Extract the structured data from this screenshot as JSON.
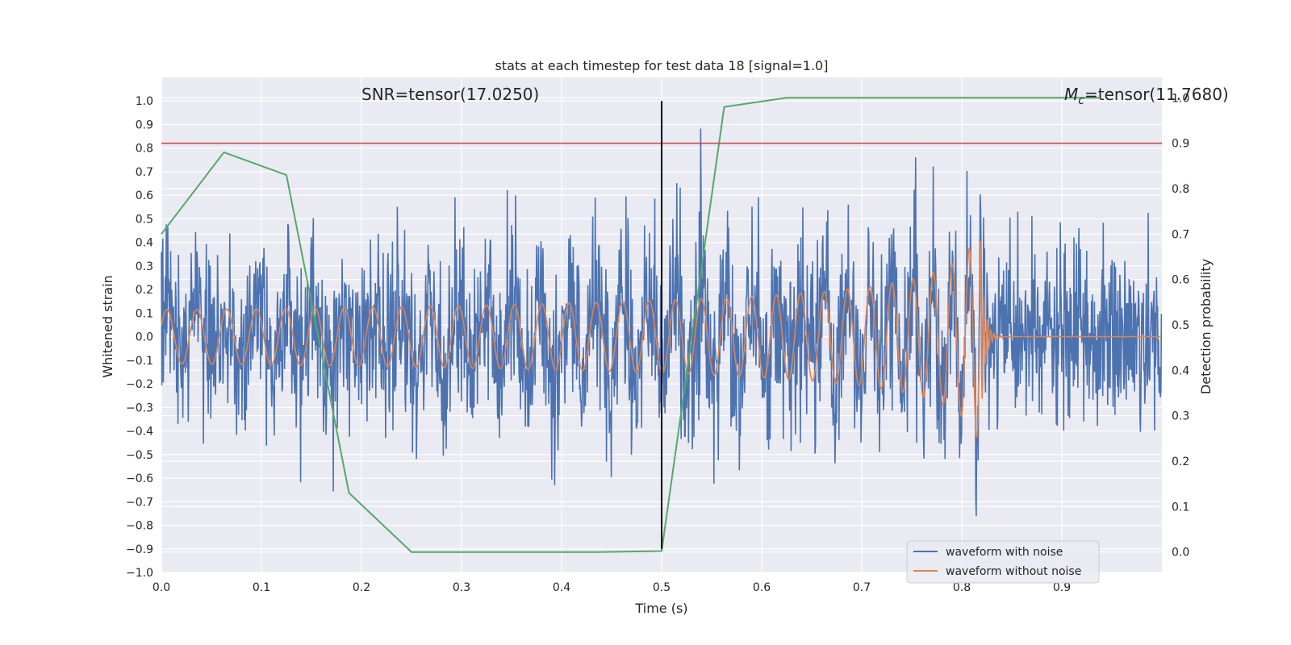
{
  "chart_data": {
    "type": "line",
    "title": "stats at each timestep for test data 18 [signal=1.0]",
    "xlabel": "Time (s)",
    "ylabel": "Whitened strain",
    "y2label": "Detection probability",
    "xlim": [
      0.0,
      1.0
    ],
    "ylim": [
      -1.0,
      1.1
    ],
    "y2lim": [
      -0.045,
      1.045
    ],
    "x_ticks": [
      0.0,
      0.1,
      0.2,
      0.3,
      0.4,
      0.5,
      0.6,
      0.7,
      0.8,
      0.9
    ],
    "x_tick_labels": [
      "0.0",
      "0.1",
      "0.2",
      "0.3",
      "0.4",
      "0.5",
      "0.6",
      "0.7",
      "0.8",
      "0.9"
    ],
    "y_ticks": [
      -1.0,
      -0.9,
      -0.8,
      -0.7,
      -0.6,
      -0.5,
      -0.4,
      -0.3,
      -0.2,
      -0.1,
      0.0,
      0.1,
      0.2,
      0.3,
      0.4,
      0.5,
      0.6,
      0.7,
      0.8,
      0.9,
      1.0
    ],
    "y_tick_labels": [
      "−1.0",
      "−0.9",
      "−0.8",
      "−0.7",
      "−0.6",
      "−0.5",
      "−0.4",
      "−0.3",
      "−0.2",
      "−0.1",
      "0.0",
      "0.1",
      "0.2",
      "0.3",
      "0.4",
      "0.5",
      "0.6",
      "0.7",
      "0.8",
      "0.9",
      "1.0"
    ],
    "y2_ticks": [
      0.0,
      0.1,
      0.2,
      0.3,
      0.4,
      0.5,
      0.6,
      0.7,
      0.8,
      0.9,
      1.0
    ],
    "y2_tick_labels": [
      "0.0",
      "0.1",
      "0.2",
      "0.3",
      "0.4",
      "0.5",
      "0.6",
      "0.7",
      "0.8",
      "0.9",
      "1.0"
    ],
    "grid": true,
    "legend_position": "lower-right",
    "series": [
      {
        "name": "waveform with noise",
        "color": "#4c72b0",
        "axis": "left",
        "noise_amplitude_estimate": 0.2,
        "x_range": [
          0.0,
          1.0
        ]
      },
      {
        "name": "waveform without noise",
        "color": "#dd8452",
        "axis": "left",
        "model": "chirp",
        "base_frequency_hz": 29,
        "base_amplitude": 0.115,
        "merger_time": 0.818,
        "ringdown_end": 0.84
      },
      {
        "name": "",
        "color": "#55a868",
        "axis": "right",
        "x": [
          0.0,
          0.0625,
          0.125,
          0.1875,
          0.25,
          0.3125,
          0.375,
          0.4375,
          0.5,
          0.5625,
          0.625,
          0.6875,
          0.75,
          0.8125,
          0.875,
          0.9375
        ],
        "y": [
          0.7,
          0.88,
          0.83,
          0.13,
          0.0,
          0.0,
          0.0,
          0.0,
          0.002,
          0.98,
          1.0,
          1.0,
          1.0,
          1.0,
          1.0,
          1.0
        ]
      }
    ],
    "threshold_line": {
      "axis": "right",
      "value": 0.9,
      "color": "#c44e52"
    },
    "vertical_marker": {
      "x": 0.5,
      "y_from": -0.9,
      "y_to": 1.0,
      "color": "#000000"
    },
    "annotations": {
      "snr": "SNR=tensor(17.0250)",
      "mc_symbol": "M",
      "mc_subscript": "c",
      "mc_value": "=tensor(11.7680)"
    }
  }
}
